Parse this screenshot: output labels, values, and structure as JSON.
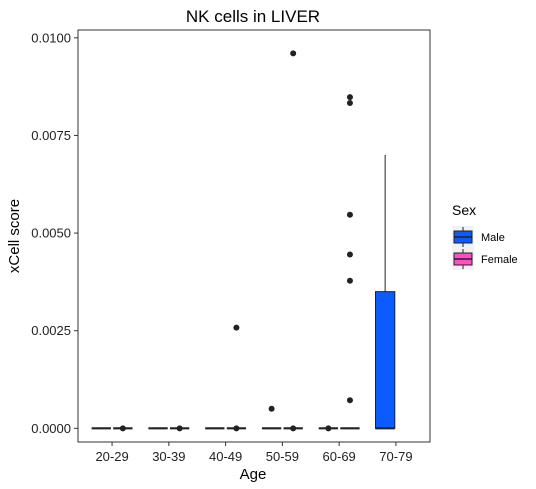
{
  "chart_data": {
    "type": "boxplot",
    "title": "NK cells in LIVER",
    "xlabel": "Age",
    "ylabel": "xCell score",
    "categories": [
      "20-29",
      "30-39",
      "40-49",
      "50-59",
      "60-69",
      "70-79"
    ],
    "ylim": [
      -0.00035,
      0.0102
    ],
    "yticks": [
      0.0,
      0.0025,
      0.005,
      0.0075,
      0.01
    ],
    "ytick_labels": [
      "0.0000",
      "0.0025",
      "0.0050",
      "0.0075",
      "0.0100"
    ],
    "grid": false,
    "legend": {
      "title": "Sex",
      "position": "right",
      "entries": [
        {
          "label": "Male",
          "color": "#0b5bff"
        },
        {
          "label": "Female",
          "color": "#ff4fc6"
        }
      ]
    },
    "series": [
      {
        "name": "Male",
        "color": "#0b5bff",
        "boxes": [
          {
            "category": "20-29",
            "q1": 0,
            "median": 0,
            "q3": 0,
            "whisker_low": 0,
            "whisker_high": 0,
            "outliers": []
          },
          {
            "category": "30-39",
            "q1": 0,
            "median": 0,
            "q3": 0,
            "whisker_low": 0,
            "whisker_high": 0,
            "outliers": []
          },
          {
            "category": "40-49",
            "q1": 0,
            "median": 0,
            "q3": 0,
            "whisker_low": 0,
            "whisker_high": 0,
            "outliers": []
          },
          {
            "category": "50-59",
            "q1": 0,
            "median": 0,
            "q3": 0,
            "whisker_low": 0,
            "whisker_high": 0,
            "outliers": [
              0.0005
            ]
          },
          {
            "category": "60-69",
            "q1": 0,
            "median": 0,
            "q3": 0,
            "whisker_low": 0,
            "whisker_high": 0,
            "outliers": [
              0
            ]
          },
          {
            "category": "70-79",
            "q1": 0,
            "median": 0,
            "q3": 0.0035,
            "whisker_low": 0,
            "whisker_high": 0.007,
            "outliers": []
          }
        ]
      },
      {
        "name": "Female",
        "color": "#ff4fc6",
        "boxes": [
          {
            "category": "20-29",
            "q1": 0,
            "median": 0,
            "q3": 0,
            "whisker_low": 0,
            "whisker_high": 0,
            "outliers": [
              0
            ]
          },
          {
            "category": "30-39",
            "q1": 0,
            "median": 0,
            "q3": 0,
            "whisker_low": 0,
            "whisker_high": 0,
            "outliers": [
              0
            ]
          },
          {
            "category": "40-49",
            "q1": 0,
            "median": 0,
            "q3": 0,
            "whisker_low": 0,
            "whisker_high": 0,
            "outliers": [
              0.00258,
              0
            ]
          },
          {
            "category": "50-59",
            "q1": 0,
            "median": 0,
            "q3": 0,
            "whisker_low": 0,
            "whisker_high": 0,
            "outliers": [
              0.0096,
              0
            ]
          },
          {
            "category": "60-69",
            "q1": 0,
            "median": 0,
            "q3": 0,
            "whisker_low": 0,
            "whisker_high": 0,
            "outliers": [
              0.00848,
              0.00833,
              0.00547,
              0.00445,
              0.00378,
              0.00072
            ]
          },
          {
            "category": "70-79",
            "q1": null,
            "median": null,
            "q3": null,
            "whisker_low": null,
            "whisker_high": null,
            "outliers": []
          }
        ]
      }
    ]
  }
}
